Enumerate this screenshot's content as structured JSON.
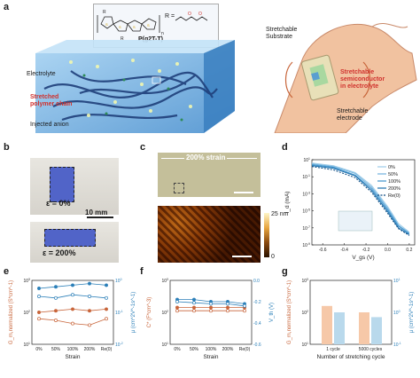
{
  "panels": {
    "a": "a",
    "b": "b",
    "c": "c",
    "d": "d",
    "e": "e",
    "f": "f",
    "g": "g"
  },
  "panel_a": {
    "formula": "P(g2T-T)",
    "r_label": "R =",
    "electrolyte": "Electrolyte",
    "stretched_chain": [
      "Stretched",
      "polymer chain"
    ],
    "injected_anion": "Injected anion",
    "stretchable_substrate": [
      "Stretchable",
      "Substrate"
    ],
    "semiconductor": [
      "Stretchable",
      "semiconductor",
      "in electrolyte"
    ],
    "stretchable_electrode": [
      "Stretchable",
      "electrode"
    ]
  },
  "panel_b": {
    "eps0": "ε = 0%",
    "eps200": "ε = 200%",
    "scale": "10 mm"
  },
  "panel_c": {
    "strain": "200% strain",
    "scale_max": "25 nm",
    "scale_min": "0"
  },
  "panel_d": {
    "ylabel": "I_d (mA)",
    "xlabel": "V_gs (V)",
    "legend": [
      "0%",
      "50%",
      "100%",
      "200%",
      "Re(0)"
    ],
    "xticks": [
      "-0.6",
      "-0.4",
      "-0.2",
      "0.0",
      "0.2"
    ],
    "yticks": [
      "10^1",
      "10^-1",
      "10^-3",
      "10^-5",
      "10^-7",
      "10^-9"
    ]
  },
  "panel_e": {
    "ylabel_left": "G_m,normalized (S*cm^-1)",
    "ylabel_right": "μ (cm^2V^-1s^-1)",
    "xlabel": "Strain",
    "xticks": [
      "0%",
      "50%",
      "100%",
      "200%",
      "Re(0)"
    ],
    "yticks_left": [
      "10^3",
      "10^2",
      "10^1"
    ],
    "yticks_right": [
      "10^0",
      "10^-1",
      "10^-2"
    ]
  },
  "panel_f": {
    "ylabel_left": "C* (F*cm^-3)",
    "ylabel_right": "V_th (V)",
    "xlabel": "Strain",
    "xticks": [
      "0%",
      "50%",
      "100%",
      "200%",
      "Re(0)"
    ],
    "yticks_left": [
      "10^3",
      "10^2",
      "10^1"
    ],
    "yticks_right": [
      "0.0",
      "-0.2",
      "-0.4",
      "-0.6"
    ]
  },
  "panel_g": {
    "ylabel_left": "G_m,normalized (S*cm^-1)",
    "ylabel_right": "μ (cm^2V^-1s^-1)",
    "xlabel": "Number of stretching cycle",
    "xticks": [
      "1 cycle",
      "5000 cycles"
    ],
    "yticks_left": [
      "10^3",
      "10^2",
      "10^1"
    ],
    "yticks_right": [
      "10^1",
      "10^0",
      "10^-1"
    ]
  },
  "colors": {
    "orange": "#c8653a",
    "blue": "#2b7fb8",
    "light_orange": "#f6c8a8",
    "light_blue": "#b9d9ec",
    "gel_blue": "#7db8e8"
  },
  "chart_data": [
    {
      "id": "d",
      "type": "line",
      "xlabel": "V_gs (V)",
      "ylabel": "I_d (mA)",
      "xlim": [
        -0.7,
        0.25
      ],
      "ylim_log10": [
        -9,
        1
      ],
      "series": [
        {
          "name": "0%",
          "x": [
            -0.7,
            -0.5,
            -0.3,
            -0.15,
            0.0,
            0.1,
            0.2
          ],
          "log_y": [
            0.6,
            0.3,
            -0.5,
            -2.0,
            -4.5,
            -6.5,
            -7.5
          ]
        },
        {
          "name": "50%",
          "x": [
            -0.7,
            -0.5,
            -0.3,
            -0.15,
            0.0,
            0.1,
            0.2
          ],
          "log_y": [
            0.5,
            0.2,
            -0.6,
            -2.2,
            -4.7,
            -6.7,
            -7.6
          ]
        },
        {
          "name": "100%",
          "x": [
            -0.7,
            -0.5,
            -0.3,
            -0.15,
            0.0,
            0.1,
            0.2
          ],
          "log_y": [
            0.4,
            0.1,
            -0.8,
            -2.4,
            -4.9,
            -6.8,
            -7.7
          ]
        },
        {
          "name": "200%",
          "x": [
            -0.7,
            -0.5,
            -0.3,
            -0.15,
            0.0,
            0.1,
            0.2
          ],
          "log_y": [
            0.3,
            0.0,
            -0.9,
            -2.6,
            -5.1,
            -7.0,
            -7.8
          ]
        },
        {
          "name": "Re(0)",
          "x": [
            -0.7,
            -0.5,
            -0.3,
            -0.15,
            0.0,
            0.1,
            0.2
          ],
          "log_y": [
            0.2,
            -0.2,
            -1.1,
            -2.8,
            -5.3,
            -7.1,
            -7.9
          ]
        }
      ]
    },
    {
      "id": "e",
      "type": "line",
      "categories": [
        "0%",
        "50%",
        "100%",
        "200%",
        "Re(0)"
      ],
      "series": [
        {
          "name": "G_m closed",
          "axis": "left",
          "log_values": [
            2.0,
            2.05,
            2.1,
            2.05,
            2.1
          ]
        },
        {
          "name": "G_m open",
          "axis": "left",
          "log_values": [
            1.8,
            1.75,
            1.65,
            1.6,
            1.8
          ]
        },
        {
          "name": "mu closed",
          "axis": "right",
          "log_values": [
            -0.25,
            -0.2,
            -0.15,
            -0.1,
            -0.15
          ]
        },
        {
          "name": "mu open",
          "axis": "right",
          "log_values": [
            -0.5,
            -0.55,
            -0.45,
            -0.5,
            -0.55
          ]
        }
      ]
    },
    {
      "id": "f",
      "type": "line",
      "categories": [
        "0%",
        "50%",
        "100%",
        "200%",
        "Re(0)"
      ],
      "series": [
        {
          "name": "C* closed",
          "axis": "left",
          "log_values": [
            2.15,
            2.15,
            2.15,
            2.15,
            2.15
          ]
        },
        {
          "name": "C* open",
          "axis": "left",
          "log_values": [
            2.05,
            2.05,
            2.05,
            2.05,
            2.05
          ]
        },
        {
          "name": "V_th closed",
          "axis": "right",
          "values": [
            -0.18,
            -0.18,
            -0.2,
            -0.2,
            -0.22
          ]
        },
        {
          "name": "V_th open",
          "axis": "right",
          "values": [
            -0.2,
            -0.21,
            -0.22,
            -0.22,
            -0.24
          ]
        }
      ]
    },
    {
      "id": "g",
      "type": "bar",
      "categories": [
        "1 cycle",
        "5000 cycles"
      ],
      "series": [
        {
          "name": "G_m",
          "axis": "left",
          "log_values": [
            2.2,
            2.0
          ]
        },
        {
          "name": "mu",
          "axis": "right",
          "log_values": [
            0.0,
            -0.15
          ]
        }
      ]
    }
  ]
}
